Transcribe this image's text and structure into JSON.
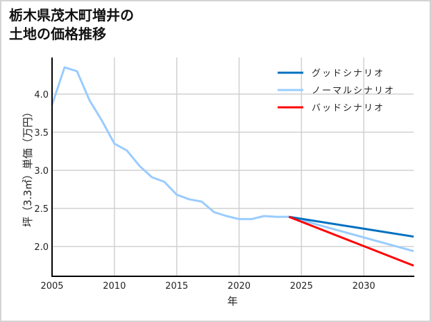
{
  "title": "栃木県茂木町増井の\n土地の価格推移",
  "chart_data": {
    "type": "line",
    "title": "栃木県茂木町増井の土地の価格推移",
    "xlabel": "年",
    "ylabel": "坪（3.3㎡）単価（万円）",
    "xlim": [
      2005,
      2034
    ],
    "ylim": [
      1.61,
      4.48
    ],
    "xticks": [
      2005,
      2010,
      2015,
      2020,
      2025,
      2030
    ],
    "yticks": [
      2.0,
      2.5,
      3.0,
      3.5,
      4.0
    ],
    "grid": true,
    "legend_position": "upper right",
    "series": [
      {
        "name": "ノーマルシナリオ",
        "color": "#99ccff",
        "x": [
          2005,
          2006,
          2007,
          2008,
          2009,
          2010,
          2011,
          2012,
          2013,
          2014,
          2015,
          2016,
          2017,
          2018,
          2019,
          2020,
          2021,
          2022,
          2023,
          2024,
          2034
        ],
        "values": [
          3.86,
          4.35,
          4.3,
          3.92,
          3.65,
          3.35,
          3.26,
          3.06,
          2.91,
          2.85,
          2.68,
          2.62,
          2.59,
          2.45,
          2.4,
          2.36,
          2.36,
          2.4,
          2.39,
          2.39,
          1.94
        ]
      },
      {
        "name": "グッドシナリオ",
        "color": "#0070c0",
        "x": [
          2024,
          2034
        ],
        "values": [
          2.39,
          2.13
        ]
      },
      {
        "name": "バッドシナリオ",
        "color": "#ff0000",
        "x": [
          2024,
          2034
        ],
        "values": [
          2.39,
          1.75
        ]
      }
    ]
  },
  "legend": [
    {
      "label": "グッドシナリオ",
      "color": "#0070c0"
    },
    {
      "label": "ノーマルシナリオ",
      "color": "#99ccff"
    },
    {
      "label": "バッドシナリオ",
      "color": "#ff0000"
    }
  ],
  "axes": {
    "xlabel": "年",
    "ylabel": "坪（3.3㎡）単価（万円）",
    "xtick_labels": [
      "2005",
      "2010",
      "2015",
      "2020",
      "2025",
      "2030"
    ],
    "ytick_labels": [
      "2.0",
      "2.5",
      "3.0",
      "3.5",
      "4.0"
    ]
  }
}
